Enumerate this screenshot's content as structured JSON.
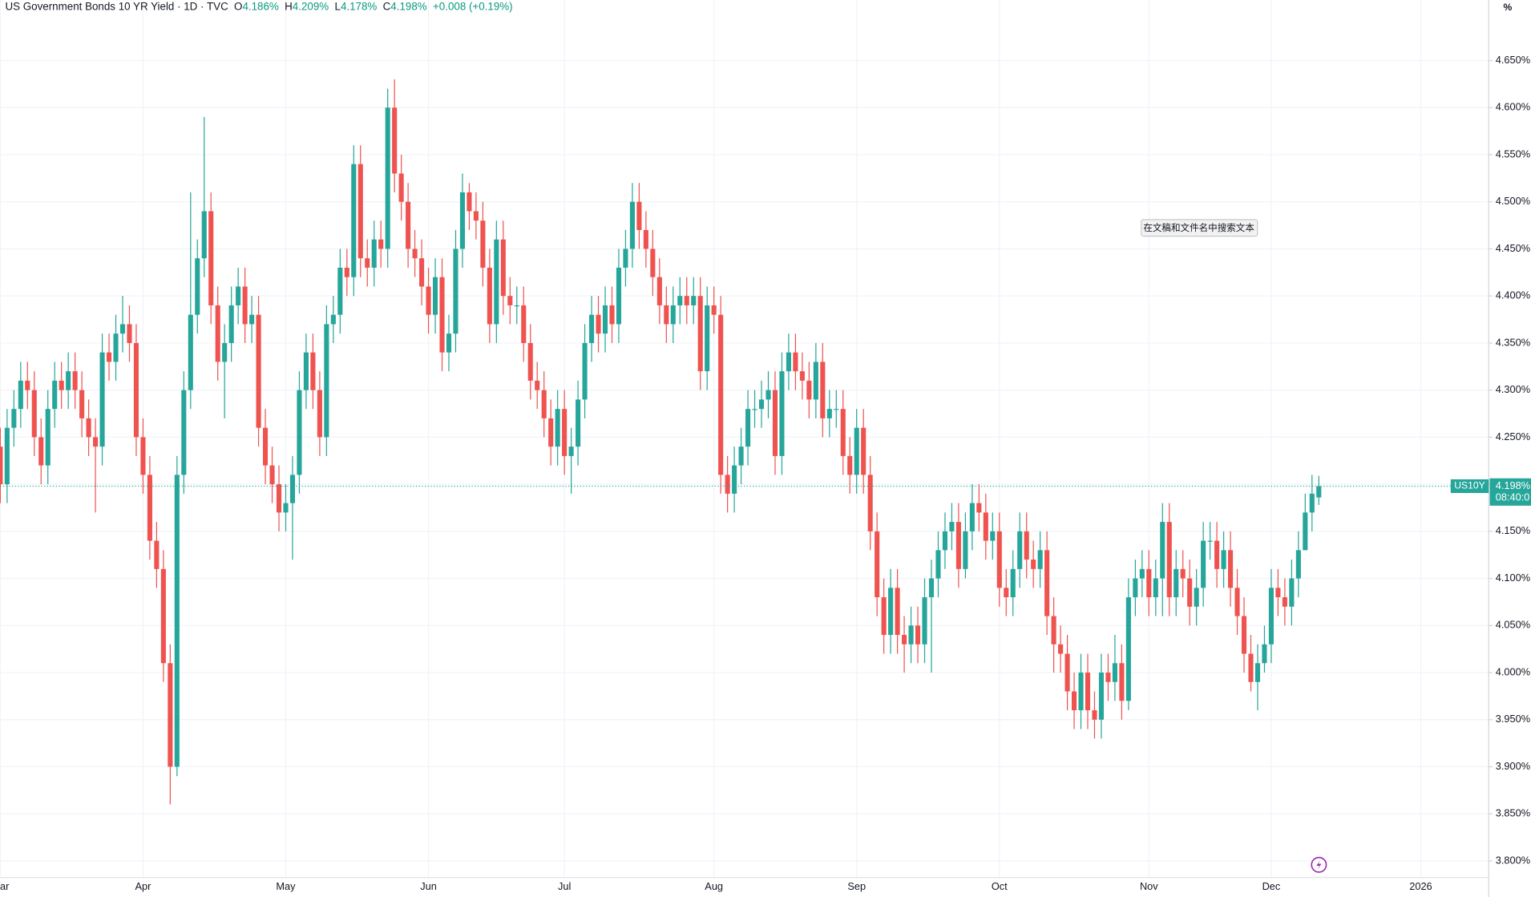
{
  "header": {
    "title": "US Government Bonds 10 YR Yield · 1D · TVC",
    "ohlc": [
      {
        "key": "O",
        "value": "4.186%"
      },
      {
        "key": "H",
        "value": "4.209%"
      },
      {
        "key": "L",
        "value": "4.178%"
      },
      {
        "key": "C",
        "value": "4.198%"
      }
    ],
    "change": "+0.008 (+0.19%)"
  },
  "axis_unit": "%",
  "price_tag": {
    "symbol": "US10Y",
    "price": "4.198%",
    "countdown": "08:40:0"
  },
  "tooltip": {
    "text": "在文稿和文件名中搜索文本"
  },
  "chart_data": {
    "type": "candlestick",
    "up_color": "#26a69a",
    "down_color": "#ef5350",
    "grid": true,
    "xlim": [
      0,
      219
    ],
    "ylim": [
      3.7824,
      4.7143
    ],
    "xticks": [
      {
        "value": 0,
        "label": "Mar"
      },
      {
        "value": 21,
        "label": "Apr"
      },
      {
        "value": 42,
        "label": "May"
      },
      {
        "value": 63,
        "label": "Jun"
      },
      {
        "value": 83,
        "label": "Jul"
      },
      {
        "value": 105,
        "label": "Aug"
      },
      {
        "value": 126,
        "label": "Sep"
      },
      {
        "value": 147,
        "label": "Oct"
      },
      {
        "value": 169,
        "label": "Nov"
      },
      {
        "value": 187,
        "label": "Dec"
      },
      {
        "value": 209,
        "label": "2026"
      }
    ],
    "yticks": [
      {
        "value": 3.8,
        "label": "3.800%"
      },
      {
        "value": 3.85,
        "label": "3.850%"
      },
      {
        "value": 3.9,
        "label": "3.900%"
      },
      {
        "value": 3.95,
        "label": "3.950%"
      },
      {
        "value": 4.0,
        "label": "4.000%"
      },
      {
        "value": 4.05,
        "label": "4.050%"
      },
      {
        "value": 4.1,
        "label": "4.100%"
      },
      {
        "value": 4.15,
        "label": "4.150%"
      },
      {
        "value": 4.2,
        "label": "4.200%"
      },
      {
        "value": 4.25,
        "label": "4.250%"
      },
      {
        "value": 4.3,
        "label": "4.300%"
      },
      {
        "value": 4.35,
        "label": "4.350%"
      },
      {
        "value": 4.4,
        "label": "4.400%"
      },
      {
        "value": 4.45,
        "label": "4.450%"
      },
      {
        "value": 4.5,
        "label": "4.500%"
      },
      {
        "value": 4.55,
        "label": "4.550%"
      },
      {
        "value": 4.6,
        "label": "4.600%"
      },
      {
        "value": 4.65,
        "label": "4.650%"
      }
    ],
    "open": [
      4.24,
      4.2,
      4.26,
      4.28,
      4.31,
      4.3,
      4.25,
      4.22,
      4.28,
      4.31,
      4.3,
      4.32,
      4.3,
      4.27,
      4.25,
      4.24,
      4.34,
      4.33,
      4.36,
      4.37,
      4.35,
      4.25,
      4.21,
      4.14,
      4.11,
      4.01,
      3.9,
      4.21,
      4.3,
      4.38,
      4.44,
      4.49,
      4.39,
      4.33,
      4.35,
      4.39,
      4.41,
      4.37,
      4.38,
      4.26,
      4.22,
      4.2,
      4.17,
      4.18,
      4.21,
      4.3,
      4.34,
      4.3,
      4.25,
      4.37,
      4.38,
      4.43,
      4.42,
      4.54,
      4.44,
      4.43,
      4.46,
      4.45,
      4.6,
      4.53,
      4.5,
      4.45,
      4.44,
      4.41,
      4.38,
      4.42,
      4.34,
      4.36,
      4.45,
      4.51,
      4.49,
      4.48,
      4.43,
      4.37,
      4.46,
      4.4,
      4.39,
      4.39,
      4.35,
      4.31,
      4.3,
      4.27,
      4.24,
      4.28,
      4.23,
      4.24,
      4.29,
      4.35,
      4.38,
      4.36,
      4.39,
      4.37,
      4.43,
      4.45,
      4.5,
      4.47,
      4.45,
      4.42,
      4.39,
      4.37,
      4.39,
      4.4,
      4.39,
      4.4,
      4.32,
      4.39,
      4.38,
      4.21,
      4.19,
      4.22,
      4.24,
      4.28,
      4.28,
      4.29,
      4.3,
      4.23,
      4.32,
      4.34,
      4.32,
      4.31,
      4.29,
      4.33,
      4.27,
      4.28,
      4.28,
      4.23,
      4.21,
      4.26,
      4.21,
      4.15,
      4.08,
      4.04,
      4.09,
      4.04,
      4.03,
      4.05,
      4.03,
      4.08,
      4.1,
      4.13,
      4.15,
      4.16,
      4.11,
      4.15,
      4.18,
      4.17,
      4.14,
      4.15,
      4.09,
      4.08,
      4.11,
      4.15,
      4.12,
      4.11,
      4.13,
      4.06,
      4.03,
      4.02,
      3.98,
      3.96,
      4.0,
      3.96,
      3.95,
      4.0,
      3.99,
      4.01,
      3.97,
      4.08,
      4.1,
      4.11,
      4.08,
      4.1,
      4.16,
      4.08,
      4.11,
      4.1,
      4.07,
      4.09,
      4.14,
      4.14,
      4.11,
      4.13,
      4.09,
      4.06,
      4.02,
      3.99,
      4.01,
      4.03,
      4.09,
      4.08,
      4.07,
      4.1,
      4.13,
      4.17,
      4.186
    ],
    "high": [
      4.26,
      4.28,
      4.3,
      4.33,
      4.33,
      4.32,
      4.27,
      4.3,
      4.33,
      4.33,
      4.34,
      4.34,
      4.32,
      4.29,
      4.27,
      4.36,
      4.36,
      4.38,
      4.4,
      4.39,
      4.37,
      4.27,
      4.23,
      4.16,
      4.13,
      4.03,
      4.23,
      4.32,
      4.51,
      4.46,
      4.59,
      4.51,
      4.41,
      4.37,
      4.41,
      4.43,
      4.43,
      4.4,
      4.4,
      4.28,
      4.24,
      4.22,
      4.2,
      4.23,
      4.32,
      4.36,
      4.36,
      4.32,
      4.39,
      4.4,
      4.45,
      4.45,
      4.56,
      4.56,
      4.46,
      4.48,
      4.48,
      4.62,
      4.63,
      4.55,
      4.52,
      4.47,
      4.46,
      4.43,
      4.44,
      4.44,
      4.38,
      4.47,
      4.53,
      4.52,
      4.51,
      4.5,
      4.45,
      4.48,
      4.48,
      4.42,
      4.41,
      4.41,
      4.37,
      4.33,
      4.32,
      4.29,
      4.3,
      4.3,
      4.26,
      4.31,
      4.37,
      4.4,
      4.4,
      4.41,
      4.41,
      4.45,
      4.47,
      4.52,
      4.52,
      4.49,
      4.47,
      4.44,
      4.41,
      4.41,
      4.42,
      4.42,
      4.42,
      4.42,
      4.41,
      4.41,
      4.4,
      4.23,
      4.24,
      4.26,
      4.3,
      4.3,
      4.31,
      4.32,
      4.32,
      4.34,
      4.36,
      4.36,
      4.34,
      4.33,
      4.35,
      4.35,
      4.3,
      4.3,
      4.3,
      4.25,
      4.28,
      4.28,
      4.23,
      4.17,
      4.1,
      4.11,
      4.11,
      4.06,
      4.07,
      4.07,
      4.1,
      4.12,
      4.15,
      4.17,
      4.18,
      4.18,
      4.17,
      4.2,
      4.2,
      4.19,
      4.17,
      4.17,
      4.11,
      4.13,
      4.17,
      4.17,
      4.14,
      4.15,
      4.15,
      4.08,
      4.05,
      4.04,
      4.0,
      4.02,
      4.02,
      3.98,
      4.02,
      4.02,
      4.04,
      4.03,
      4.1,
      4.12,
      4.13,
      4.13,
      4.12,
      4.18,
      4.18,
      4.13,
      4.13,
      4.12,
      4.11,
      4.16,
      4.16,
      4.16,
      4.15,
      4.15,
      4.11,
      4.08,
      4.04,
      4.03,
      4.05,
      4.11,
      4.11,
      4.1,
      4.12,
      4.15,
      4.19,
      4.21,
      4.209
    ],
    "low": [
      4.18,
      4.18,
      4.24,
      4.26,
      4.28,
      4.23,
      4.2,
      4.2,
      4.26,
      4.28,
      4.28,
      4.28,
      4.25,
      4.23,
      4.17,
      4.22,
      4.31,
      4.31,
      4.34,
      4.33,
      4.23,
      4.19,
      4.12,
      4.09,
      3.99,
      3.86,
      3.89,
      4.19,
      4.28,
      4.36,
      4.42,
      4.37,
      4.31,
      4.27,
      4.33,
      4.37,
      4.35,
      4.35,
      4.24,
      4.2,
      4.18,
      4.15,
      4.15,
      4.12,
      4.19,
      4.28,
      4.28,
      4.23,
      4.23,
      4.35,
      4.36,
      4.4,
      4.4,
      4.42,
      4.41,
      4.41,
      4.43,
      4.43,
      4.51,
      4.48,
      4.43,
      4.42,
      4.39,
      4.36,
      4.36,
      4.32,
      4.32,
      4.34,
      4.43,
      4.47,
      4.46,
      4.41,
      4.35,
      4.35,
      4.38,
      4.37,
      4.37,
      4.33,
      4.29,
      4.28,
      4.25,
      4.22,
      4.22,
      4.21,
      4.19,
      4.22,
      4.27,
      4.33,
      4.34,
      4.34,
      4.35,
      4.35,
      4.41,
      4.43,
      4.45,
      4.43,
      4.4,
      4.37,
      4.35,
      4.35,
      4.37,
      4.37,
      4.37,
      4.3,
      4.3,
      4.36,
      4.19,
      4.17,
      4.17,
      4.2,
      4.22,
      4.26,
      4.26,
      4.27,
      4.21,
      4.21,
      4.3,
      4.3,
      4.29,
      4.27,
      4.27,
      4.25,
      4.25,
      4.26,
      4.21,
      4.19,
      4.19,
      4.19,
      4.13,
      4.06,
      4.02,
      4.02,
      4.02,
      4.0,
      4.01,
      4.01,
      4.01,
      4.0,
      4.08,
      4.11,
      4.13,
      4.09,
      4.1,
      4.13,
      4.15,
      4.12,
      4.12,
      4.07,
      4.06,
      4.06,
      4.09,
      4.1,
      4.09,
      4.09,
      4.04,
      4.0,
      4.0,
      3.96,
      3.94,
      3.94,
      3.94,
      3.93,
      3.93,
      3.97,
      3.97,
      3.95,
      3.96,
      4.06,
      4.08,
      4.06,
      4.06,
      4.06,
      4.06,
      4.06,
      4.08,
      4.05,
      4.05,
      4.07,
      4.12,
      4.09,
      4.09,
      4.07,
      4.04,
      4.0,
      3.98,
      3.96,
      4.0,
      4.01,
      4.06,
      4.05,
      4.05,
      4.08,
      4.13,
      4.15,
      4.178
    ],
    "close": [
      4.2,
      4.26,
      4.28,
      4.31,
      4.3,
      4.25,
      4.22,
      4.28,
      4.31,
      4.3,
      4.32,
      4.3,
      4.27,
      4.25,
      4.24,
      4.34,
      4.33,
      4.36,
      4.37,
      4.35,
      4.25,
      4.21,
      4.14,
      4.11,
      4.01,
      3.9,
      4.21,
      4.3,
      4.38,
      4.44,
      4.49,
      4.39,
      4.33,
      4.35,
      4.39,
      4.41,
      4.37,
      4.38,
      4.26,
      4.22,
      4.2,
      4.17,
      4.18,
      4.21,
      4.3,
      4.34,
      4.3,
      4.25,
      4.37,
      4.38,
      4.43,
      4.42,
      4.54,
      4.44,
      4.43,
      4.46,
      4.45,
      4.6,
      4.53,
      4.5,
      4.45,
      4.44,
      4.41,
      4.38,
      4.42,
      4.34,
      4.36,
      4.45,
      4.51,
      4.49,
      4.48,
      4.43,
      4.37,
      4.46,
      4.4,
      4.39,
      4.39,
      4.35,
      4.31,
      4.3,
      4.27,
      4.24,
      4.28,
      4.23,
      4.24,
      4.29,
      4.35,
      4.38,
      4.36,
      4.39,
      4.37,
      4.43,
      4.45,
      4.5,
      4.47,
      4.45,
      4.42,
      4.39,
      4.37,
      4.39,
      4.4,
      4.39,
      4.4,
      4.32,
      4.39,
      4.38,
      4.21,
      4.19,
      4.22,
      4.24,
      4.28,
      4.28,
      4.29,
      4.3,
      4.23,
      4.32,
      4.34,
      4.32,
      4.31,
      4.29,
      4.33,
      4.27,
      4.28,
      4.28,
      4.23,
      4.21,
      4.26,
      4.21,
      4.15,
      4.08,
      4.04,
      4.09,
      4.04,
      4.03,
      4.05,
      4.03,
      4.08,
      4.1,
      4.13,
      4.15,
      4.16,
      4.11,
      4.15,
      4.18,
      4.17,
      4.14,
      4.15,
      4.09,
      4.08,
      4.11,
      4.15,
      4.12,
      4.11,
      4.13,
      4.06,
      4.03,
      4.02,
      3.98,
      3.96,
      4.0,
      3.96,
      3.95,
      4.0,
      3.99,
      4.01,
      3.97,
      4.08,
      4.1,
      4.11,
      4.08,
      4.1,
      4.16,
      4.08,
      4.11,
      4.1,
      4.07,
      4.09,
      4.14,
      4.14,
      4.11,
      4.13,
      4.09,
      4.06,
      4.02,
      3.99,
      4.01,
      4.03,
      4.09,
      4.08,
      4.07,
      4.1,
      4.13,
      4.17,
      4.19,
      4.198
    ]
  }
}
